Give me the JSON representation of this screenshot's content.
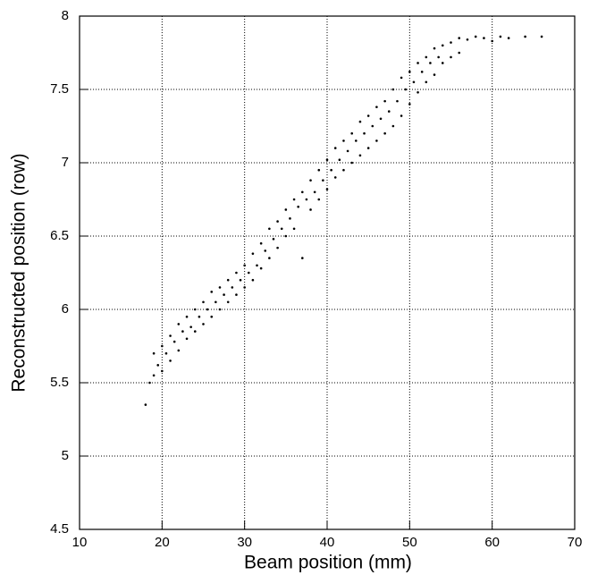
{
  "chart_data": {
    "type": "scatter",
    "xlabel": "Beam position (mm)",
    "ylabel": "Reconstructed position (row)",
    "xlim": [
      10,
      70
    ],
    "ylim": [
      4.5,
      8
    ],
    "xticks": [
      10,
      20,
      30,
      40,
      50,
      60,
      70
    ],
    "yticks": [
      4.5,
      5,
      5.5,
      6,
      6.5,
      7,
      7.5,
      8
    ],
    "grid": true,
    "color": "#000000",
    "x": [
      18,
      18.5,
      19,
      19,
      19.5,
      20,
      20,
      20.5,
      21,
      21,
      21.5,
      22,
      22,
      22.5,
      23,
      23,
      23.5,
      24,
      24,
      24.5,
      25,
      25,
      25.5,
      26,
      26,
      26.5,
      27,
      27,
      27.5,
      28,
      28,
      28.5,
      29,
      29,
      29.5,
      30,
      30,
      30.5,
      31,
      31,
      31.5,
      32,
      32,
      32.5,
      33,
      33,
      33.5,
      34,
      34,
      34.5,
      35,
      35,
      35.5,
      36,
      36,
      36.5,
      37,
      37,
      37.5,
      38,
      38,
      38.5,
      39,
      39,
      39.5,
      40,
      40,
      40.5,
      41,
      41,
      41.5,
      42,
      42,
      42.5,
      43,
      43,
      43.5,
      44,
      44,
      44.5,
      45,
      45,
      45.5,
      46,
      46,
      46.5,
      47,
      47,
      47.5,
      48,
      48,
      48.5,
      49,
      49,
      49.5,
      50,
      50,
      50.5,
      51,
      51,
      51.5,
      52,
      52,
      52.5,
      53,
      53,
      53.5,
      54,
      54,
      55,
      55,
      56,
      56,
      57,
      58,
      59,
      60,
      61,
      62,
      64,
      66
    ],
    "y": [
      5.35,
      5.5,
      5.7,
      5.55,
      5.62,
      5.75,
      5.58,
      5.7,
      5.82,
      5.65,
      5.78,
      5.9,
      5.72,
      5.85,
      5.95,
      5.8,
      5.88,
      6.0,
      5.85,
      5.95,
      6.05,
      5.9,
      6.0,
      6.12,
      5.95,
      6.05,
      6.15,
      6.0,
      6.1,
      6.2,
      6.05,
      6.15,
      6.25,
      6.1,
      6.2,
      6.3,
      6.15,
      6.25,
      6.38,
      6.2,
      6.3,
      6.45,
      6.28,
      6.4,
      6.55,
      6.35,
      6.48,
      6.6,
      6.42,
      6.55,
      6.68,
      6.5,
      6.62,
      6.75,
      6.55,
      6.7,
      6.8,
      6.35,
      6.75,
      6.88,
      6.68,
      6.8,
      6.95,
      6.75,
      6.88,
      7.02,
      6.82,
      6.95,
      7.1,
      6.9,
      7.02,
      7.15,
      6.95,
      7.08,
      7.2,
      7.0,
      7.15,
      7.28,
      7.05,
      7.2,
      7.32,
      7.1,
      7.25,
      7.38,
      7.15,
      7.3,
      7.42,
      7.2,
      7.35,
      7.5,
      7.25,
      7.42,
      7.58,
      7.32,
      7.5,
      7.62,
      7.4,
      7.55,
      7.68,
      7.48,
      7.62,
      7.72,
      7.55,
      7.68,
      7.78,
      7.6,
      7.72,
      7.8,
      7.68,
      7.82,
      7.72,
      7.85,
      7.75,
      7.84,
      7.86,
      7.85,
      7.83,
      7.86,
      7.85,
      7.86,
      7.86
    ]
  }
}
